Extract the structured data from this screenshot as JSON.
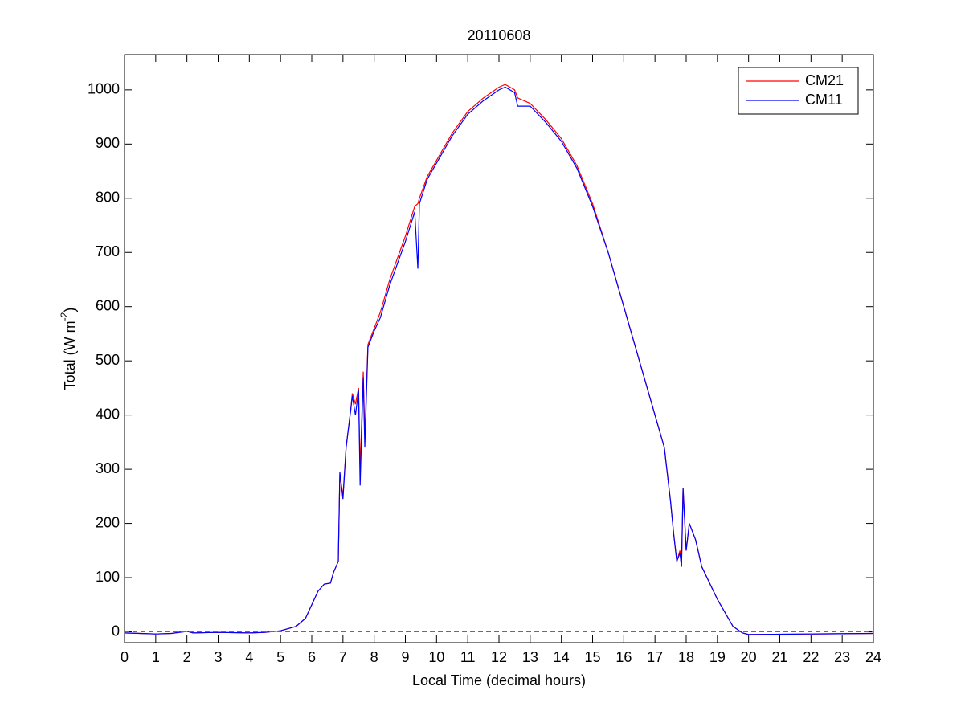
{
  "chart_data": {
    "type": "line",
    "title": "20110608",
    "xlabel": "Local Time (decimal hours)",
    "ylabel": [
      "Total (W m",
      "-2",
      ")"
    ],
    "x": [
      0,
      0.5,
      1,
      1.5,
      1.9,
      2,
      2.2,
      3,
      4,
      4.5,
      5,
      5.5,
      5.8,
      6,
      6.2,
      6.4,
      6.6,
      6.7,
      6.85,
      6.9,
      7.0,
      7.1,
      7.25,
      7.3,
      7.4,
      7.5,
      7.55,
      7.65,
      7.7,
      7.8,
      8.0,
      8.2,
      8.5,
      9.0,
      9.3,
      9.4,
      9.45,
      9.7,
      10,
      10.5,
      11,
      11.5,
      12,
      12.2,
      12.5,
      12.6,
      13,
      13.5,
      14,
      14.5,
      15,
      15.5,
      16,
      16.5,
      17,
      17.3,
      17.5,
      17.6,
      17.7,
      17.8,
      17.85,
      17.9,
      18.0,
      18.1,
      18.3,
      18.5,
      19,
      19.5,
      19.8,
      20,
      22,
      24
    ],
    "series": [
      {
        "name": "CM21",
        "color": "#ff0000",
        "values": [
          -2,
          -3,
          -4,
          -3,
          1,
          1,
          -2,
          -1,
          -2,
          -1,
          2,
          10,
          25,
          50,
          75,
          88,
          90,
          110,
          130,
          290,
          250,
          340,
          410,
          440,
          420,
          450,
          300,
          480,
          360,
          530,
          560,
          590,
          650,
          730,
          785,
          790,
          800,
          840,
          870,
          920,
          960,
          985,
          1005,
          1010,
          1000,
          985,
          975,
          945,
          910,
          860,
          790,
          700,
          600,
          500,
          400,
          340,
          240,
          180,
          130,
          150,
          120,
          265,
          150,
          200,
          170,
          120,
          60,
          10,
          -2,
          -5,
          -4,
          -3
        ]
      },
      {
        "name": "CM11",
        "color": "#0000ff",
        "values": [
          -2,
          -3,
          -4,
          -3,
          0,
          1,
          -2,
          -1,
          -2,
          -1,
          2,
          10,
          25,
          50,
          75,
          88,
          90,
          110,
          130,
          295,
          245,
          340,
          410,
          435,
          400,
          445,
          270,
          470,
          340,
          525,
          555,
          580,
          640,
          720,
          775,
          670,
          790,
          835,
          865,
          915,
          955,
          980,
          1000,
          1005,
          995,
          970,
          970,
          940,
          905,
          855,
          785,
          700,
          600,
          500,
          400,
          340,
          240,
          180,
          130,
          145,
          120,
          265,
          150,
          200,
          170,
          120,
          60,
          10,
          -2,
          -5,
          -4,
          -3
        ]
      }
    ],
    "reference_line": {
      "value": 0,
      "color": "#d04040",
      "dashed": true
    },
    "xlim": [
      0,
      24
    ],
    "xticks": [
      0,
      1,
      2,
      3,
      4,
      5,
      6,
      7,
      8,
      9,
      10,
      11,
      12,
      13,
      14,
      15,
      16,
      17,
      18,
      19,
      20,
      21,
      22,
      23,
      24
    ],
    "ylim": [
      -20,
      1065
    ],
    "yticks": [
      0,
      100,
      200,
      300,
      400,
      500,
      600,
      700,
      800,
      900,
      1000
    ],
    "grid": false,
    "legend": "upper right"
  }
}
